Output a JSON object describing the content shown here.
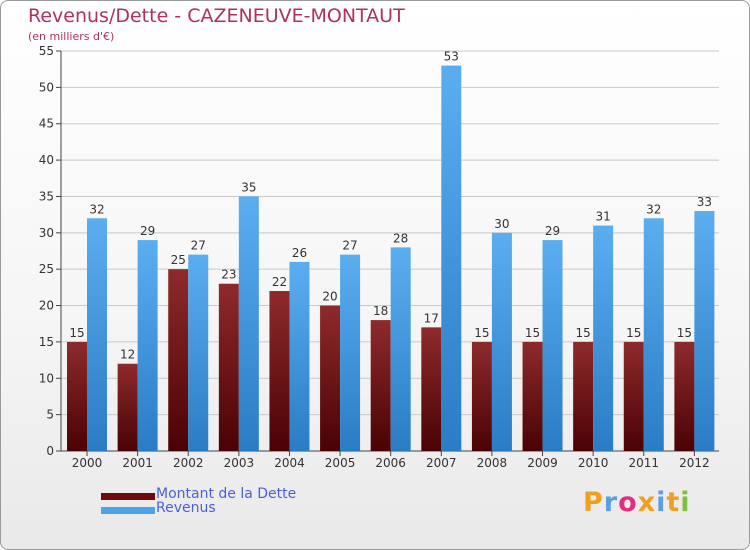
{
  "header": {
    "title": "Revenus/Dette - CAZENEUVE-MONTAUT",
    "subtitle": "(en milliers d'€)"
  },
  "legend": {
    "items": [
      {
        "label": "Montant de la Dette",
        "color": "#7a0f12"
      },
      {
        "label": "Revenus",
        "color": "#4da3e8"
      }
    ]
  },
  "logo": {
    "text": "Proxiti",
    "letters": [
      {
        "ch": "P",
        "color": "#f0a020"
      },
      {
        "ch": "r",
        "color": "#5aa0e0"
      },
      {
        "ch": "o",
        "color": "#e03080"
      },
      {
        "ch": "x",
        "color": "#f0a020"
      },
      {
        "ch": "i",
        "color": "#5aa0e0"
      },
      {
        "ch": "t",
        "color": "#f0a020"
      },
      {
        "ch": "i",
        "color": "#80c040"
      }
    ]
  },
  "chart_data": {
    "type": "bar",
    "title": "Revenus/Dette - CAZENEUVE-MONTAUT",
    "subtitle": "(en milliers d'€)",
    "xlabel": "",
    "ylabel": "",
    "categories": [
      "2000",
      "2001",
      "2002",
      "2003",
      "2004",
      "2005",
      "2006",
      "2007",
      "2008",
      "2009",
      "2010",
      "2011",
      "2012"
    ],
    "series": [
      {
        "name": "Montant de la Dette",
        "color": "#7a0f12",
        "values": [
          15,
          12,
          25,
          23,
          22,
          20,
          18,
          17,
          15,
          15,
          15,
          15,
          15
        ]
      },
      {
        "name": "Revenus",
        "color": "#4da3e8",
        "values": [
          32,
          29,
          27,
          35,
          26,
          27,
          28,
          53,
          30,
          29,
          31,
          32,
          33
        ]
      }
    ],
    "ylim": [
      0,
      55
    ],
    "yticks": [
      0,
      5,
      10,
      15,
      20,
      25,
      30,
      35,
      40,
      45,
      50,
      55
    ],
    "grid": true,
    "legend_position": "bottom-left"
  }
}
